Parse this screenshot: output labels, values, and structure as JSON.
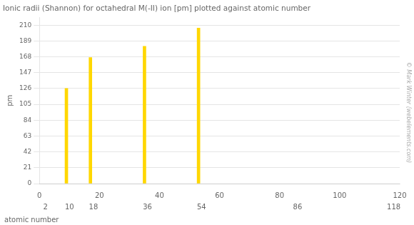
{
  "chart_data": {
    "type": "bar",
    "title": "Ionic radii (Shannon) for octahedral M(-II) ion [pm] plotted against atomic number",
    "xlabel": "atomic number",
    "ylabel": "pm",
    "x": [
      9,
      17,
      35,
      53
    ],
    "values": [
      126,
      167,
      182,
      206
    ],
    "color": "#ffd700",
    "xlim": [
      0,
      120
    ],
    "xticks": [
      0,
      20,
      40,
      60,
      80,
      100,
      120
    ],
    "ylim": [
      0,
      220
    ],
    "yticks": [
      0,
      21,
      42,
      63,
      84,
      105,
      126,
      147,
      168,
      189,
      210
    ],
    "grid": "y",
    "annotations": [
      {
        "x": 2,
        "text": "2"
      },
      {
        "x": 10,
        "text": "10"
      },
      {
        "x": 18,
        "text": "18"
      },
      {
        "x": 36,
        "text": "36"
      },
      {
        "x": 54,
        "text": "54"
      },
      {
        "x": 86,
        "text": "86"
      },
      {
        "x": 118,
        "text": "118"
      },
      {
        "text": "© Mark Winter (webelements.com)"
      }
    ]
  }
}
